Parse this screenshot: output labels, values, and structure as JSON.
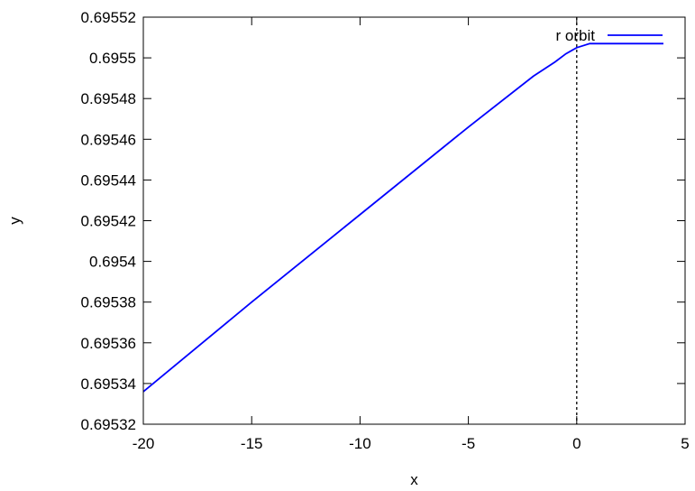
{
  "chart_data": {
    "type": "line",
    "title": "",
    "xlabel": "x",
    "ylabel": "y",
    "xlim": [
      -20,
      5
    ],
    "ylim": [
      0.69532,
      0.69552
    ],
    "x_ticks": [
      -20,
      -15,
      -10,
      -5,
      0,
      5
    ],
    "x_tick_labels": [
      "-20",
      "-15",
      "-10",
      "-5",
      "0",
      "5"
    ],
    "y_ticks": [
      0.69532,
      0.69534,
      0.69536,
      0.69538,
      0.6954,
      0.69542,
      0.69544,
      0.69546,
      0.69548,
      0.6955,
      0.69552
    ],
    "y_tick_labels": [
      "0.69532",
      "0.69534",
      "0.69536",
      "0.69538",
      "0.6954",
      "0.69542",
      "0.69544",
      "0.69546",
      "0.69548",
      "0.6955",
      "0.69552"
    ],
    "grid": false,
    "legend_position": "top-right",
    "vertical_reference_line": {
      "x": 0,
      "style": "dashed",
      "color": "#000000"
    },
    "series": [
      {
        "name": "r orbit",
        "color": "#0000ff",
        "x": [
          -20,
          -15,
          -10,
          -5,
          -2,
          -1,
          -0.5,
          0,
          0.3,
          0.6,
          1,
          2,
          3,
          4
        ],
        "y": [
          0.695336,
          0.69538,
          0.695423,
          0.695466,
          0.695491,
          0.695498,
          0.695502,
          0.695505,
          0.695506,
          0.695507,
          0.695507,
          0.695507,
          0.695507,
          0.695507
        ]
      }
    ]
  }
}
